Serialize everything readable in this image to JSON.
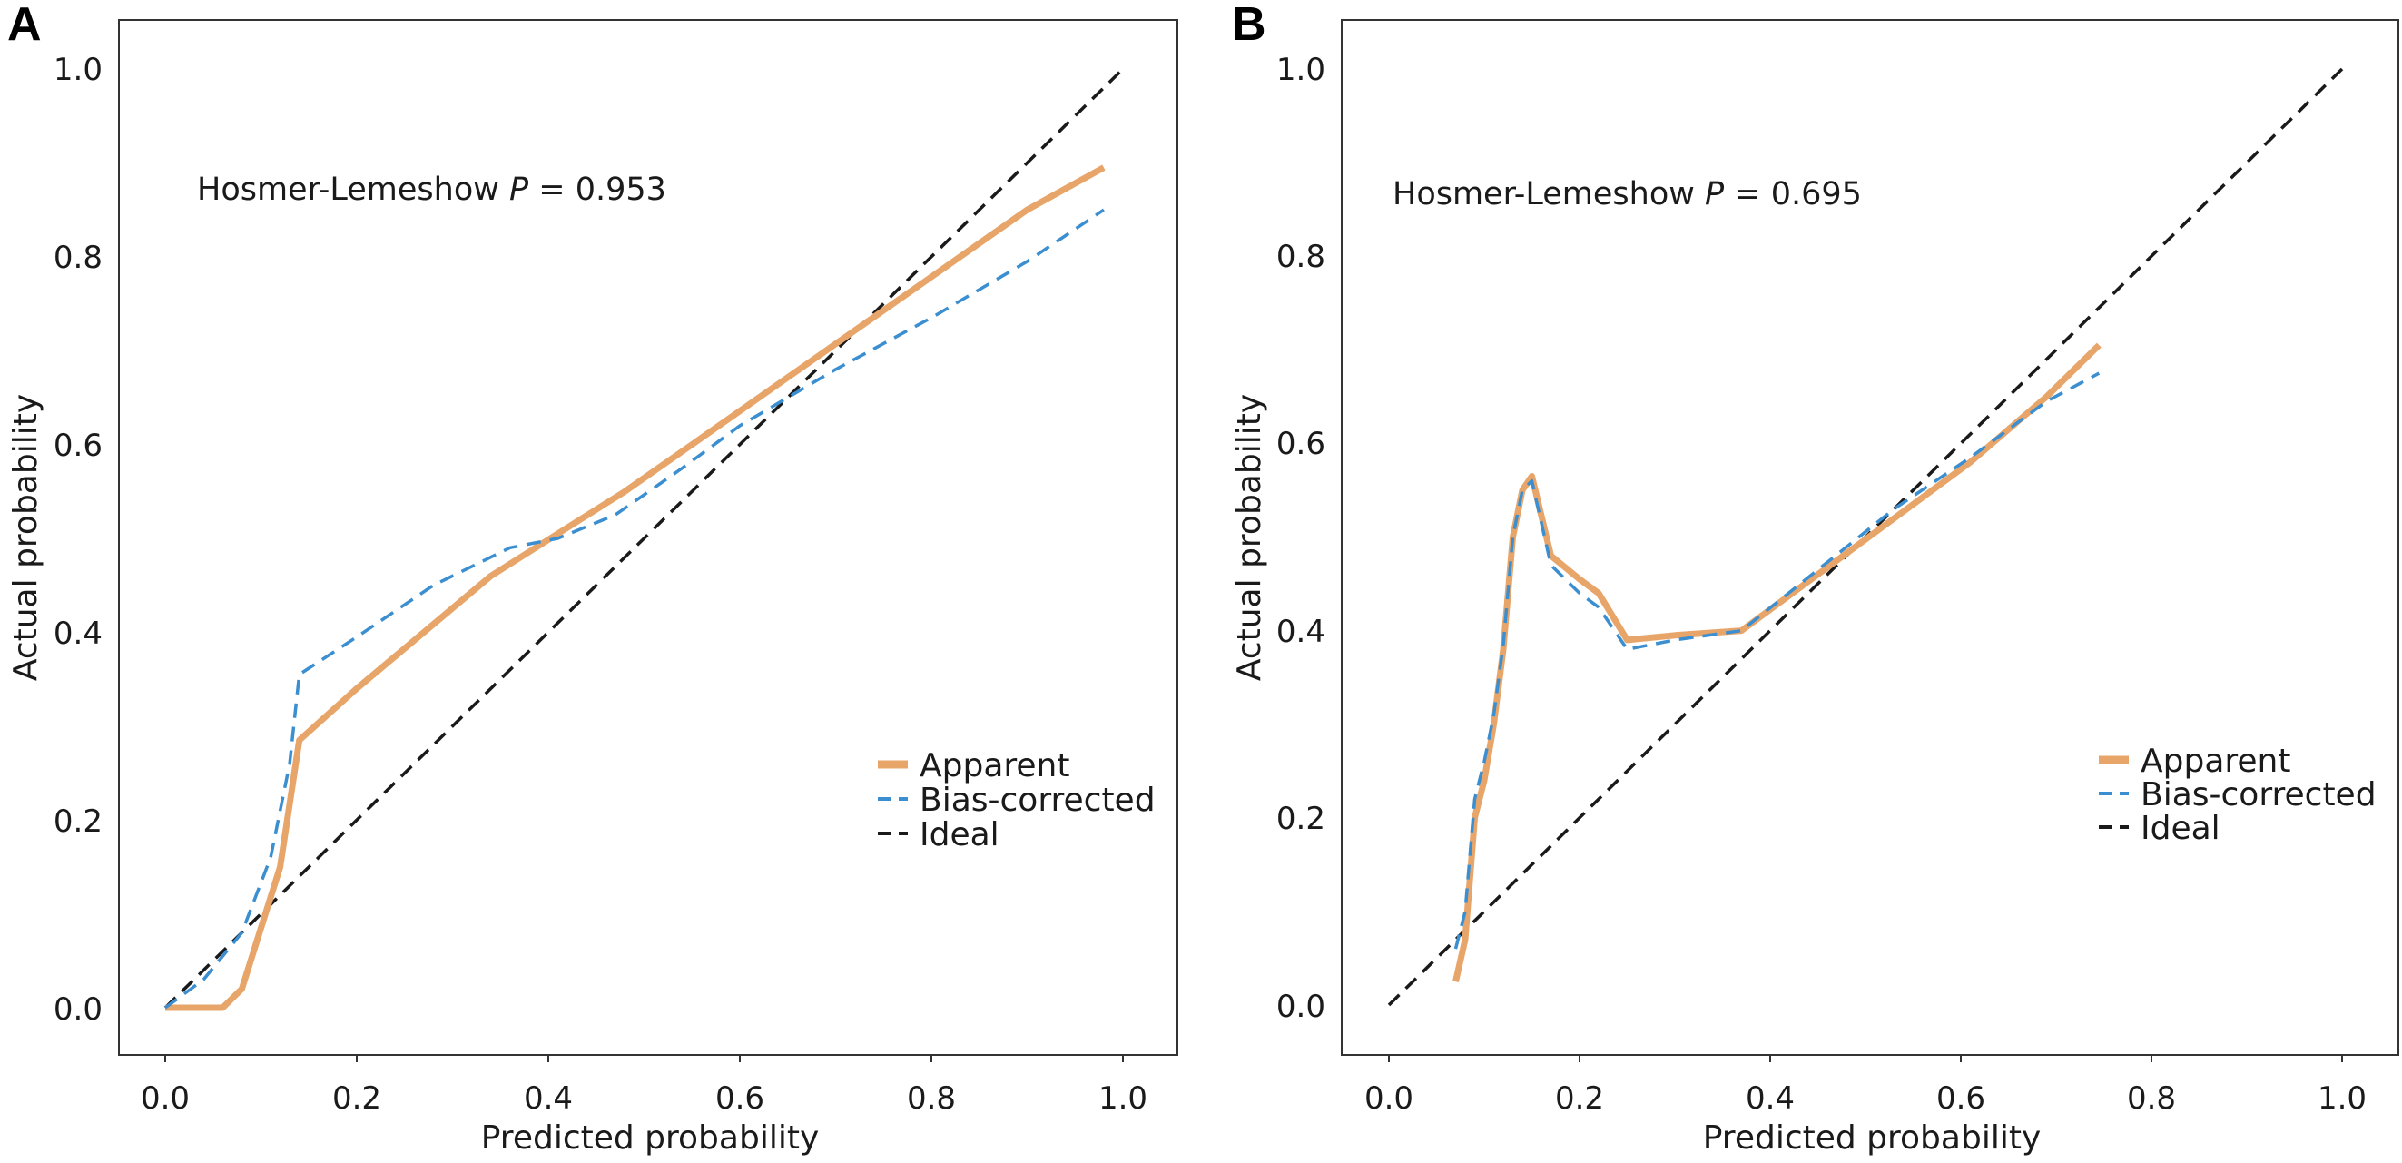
{
  "colors": {
    "apparent": "#e8a56a",
    "bias_corrected": "#3b8fd0",
    "ideal": "#1a1a1a"
  },
  "chart_data": [
    {
      "panel_label": "A",
      "type": "line",
      "xlabel": "Predicted probability",
      "ylabel": "Actual probability",
      "xlim": [
        0.0,
        1.0
      ],
      "ylim": [
        0.0,
        1.0
      ],
      "x_ticks": [
        "0.0",
        "0.2",
        "0.4",
        "0.6",
        "0.8",
        "1.0"
      ],
      "y_ticks": [
        "0.0",
        "0.2",
        "0.4",
        "0.6",
        "0.8",
        "1.0"
      ],
      "annotation": {
        "prefix": "Hosmer-Lemeshow ",
        "italic": "P",
        "suffix": " = 0.953"
      },
      "legend_position": "lower right",
      "grid": false,
      "series": [
        {
          "name": "Apparent",
          "style": "solid",
          "x": [
            0.0,
            0.06,
            0.08,
            0.12,
            0.14,
            0.2,
            0.27,
            0.34,
            0.41,
            0.48,
            0.55,
            0.62,
            0.69,
            0.76,
            0.83,
            0.9,
            0.98
          ],
          "y": [
            0.0,
            0.0,
            0.02,
            0.15,
            0.285,
            0.34,
            0.4,
            0.46,
            0.505,
            0.55,
            0.6,
            0.65,
            0.7,
            0.75,
            0.8,
            0.85,
            0.895
          ]
        },
        {
          "name": "Bias-corrected",
          "style": "dashed",
          "x": [
            0.0,
            0.04,
            0.08,
            0.11,
            0.13,
            0.14,
            0.2,
            0.28,
            0.36,
            0.41,
            0.47,
            0.54,
            0.6,
            0.7,
            0.8,
            0.9,
            0.98
          ],
          "y": [
            0.0,
            0.03,
            0.08,
            0.16,
            0.26,
            0.355,
            0.395,
            0.45,
            0.49,
            0.5,
            0.525,
            0.575,
            0.62,
            0.68,
            0.735,
            0.795,
            0.85
          ]
        },
        {
          "name": "Ideal",
          "style": "dashed",
          "x": [
            0.0,
            1.0
          ],
          "y": [
            0.0,
            1.0
          ]
        }
      ]
    },
    {
      "panel_label": "B",
      "type": "line",
      "xlabel": "Predicted probability",
      "ylabel": "Actual probability",
      "xlim": [
        0.0,
        1.0
      ],
      "ylim": [
        0.0,
        1.0
      ],
      "x_ticks": [
        "0.0",
        "0.2",
        "0.4",
        "0.6",
        "0.8",
        "1.0"
      ],
      "y_ticks": [
        "0.0",
        "0.2",
        "0.4",
        "0.6",
        "0.8",
        "1.0"
      ],
      "annotation": {
        "prefix": "Hosmer-Lemeshow ",
        "italic": "P",
        "suffix": " = 0.695"
      },
      "legend_position": "lower right",
      "grid": false,
      "series": [
        {
          "name": "Apparent",
          "style": "solid",
          "x": [
            0.07,
            0.08,
            0.09,
            0.1,
            0.11,
            0.12,
            0.13,
            0.14,
            0.15,
            0.17,
            0.2,
            0.22,
            0.25,
            0.3,
            0.37,
            0.45,
            0.53,
            0.61,
            0.69,
            0.745
          ],
          "y": [
            0.025,
            0.07,
            0.2,
            0.24,
            0.3,
            0.38,
            0.5,
            0.55,
            0.565,
            0.48,
            0.455,
            0.44,
            0.39,
            0.395,
            0.4,
            0.46,
            0.52,
            0.58,
            0.65,
            0.705
          ]
        },
        {
          "name": "Bias-corrected",
          "style": "dashed",
          "x": [
            0.07,
            0.08,
            0.09,
            0.1,
            0.11,
            0.12,
            0.13,
            0.14,
            0.15,
            0.17,
            0.2,
            0.22,
            0.25,
            0.3,
            0.37,
            0.45,
            0.53,
            0.61,
            0.69,
            0.745
          ],
          "y": [
            0.06,
            0.1,
            0.22,
            0.26,
            0.31,
            0.385,
            0.5,
            0.55,
            0.56,
            0.47,
            0.44,
            0.425,
            0.38,
            0.39,
            0.4,
            0.465,
            0.53,
            0.585,
            0.645,
            0.675
          ]
        },
        {
          "name": "Ideal",
          "style": "dashed",
          "x": [
            0.0,
            1.0
          ],
          "y": [
            0.0,
            1.0
          ]
        }
      ]
    }
  ]
}
